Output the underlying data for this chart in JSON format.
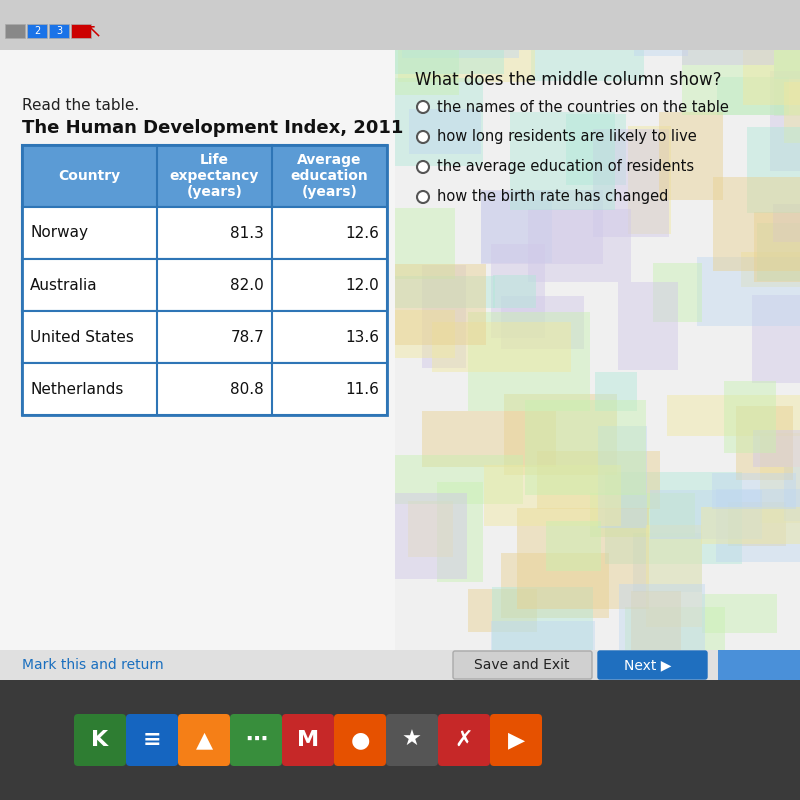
{
  "title_read": "Read the table.",
  "title_main": "The Human Development Index, 2011",
  "question": "What does the middle column show?",
  "options": [
    "the names of the countries on the table",
    "how long residents are likely to live",
    "the average education of residents",
    "how the birth rate has changed"
  ],
  "col_headers": [
    "Country",
    "Life\nexpectancy\n(years)",
    "Average\neducation\n(years)"
  ],
  "rows": [
    [
      "Norway",
      "81.3",
      "12.6"
    ],
    [
      "Australia",
      "82.0",
      "12.0"
    ],
    [
      "United States",
      "78.7",
      "13.6"
    ],
    [
      "Netherlands",
      "80.8",
      "11.6"
    ]
  ],
  "table_header_bg": "#5b9bd5",
  "table_header_text": "#ffffff",
  "table_border_color": "#2e75b6",
  "table_cell_bg": "#ffffff",
  "nav_button_color": "#1f6fbf",
  "save_button_color": "#d0d0d0",
  "bottom_bar_color": "#e0e0e0",
  "taskbar_color": "#3a3a3a",
  "top_bar_color": "#cccccc",
  "mark_link_color": "#1a6fbf",
  "page_bg": "#c8dce8",
  "left_bg": "#f5f5f5",
  "grad_colors": [
    "#b0e8d8",
    "#c8f0b0",
    "#f0e8a0",
    "#e8d090",
    "#d0c8e8",
    "#c0d8f0"
  ]
}
